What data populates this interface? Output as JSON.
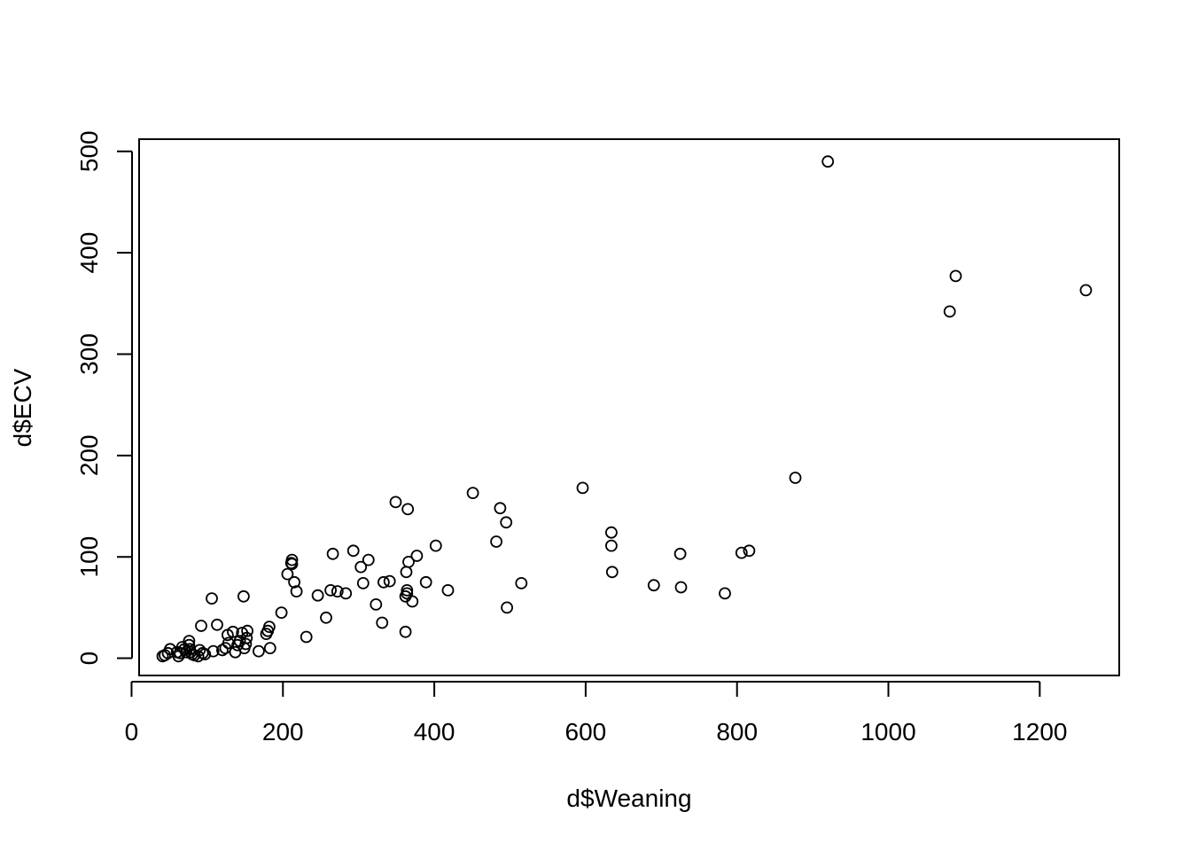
{
  "chart_data": {
    "type": "scatter",
    "title": "",
    "xlabel": "d$Weaning",
    "ylabel": "d$ECV",
    "xlim": [
      10,
      1305
    ],
    "ylim": [
      -17,
      512
    ],
    "xticks": [
      0,
      200,
      400,
      600,
      800,
      1000,
      1200
    ],
    "yticks": [
      0,
      100,
      200,
      300,
      400,
      500
    ],
    "grid": false,
    "marker": "open-circle",
    "points": [
      [
        41,
        2
      ],
      [
        44,
        3
      ],
      [
        48,
        5
      ],
      [
        51,
        9
      ],
      [
        60,
        6
      ],
      [
        62,
        2
      ],
      [
        64,
        5
      ],
      [
        67,
        11
      ],
      [
        70,
        9
      ],
      [
        72,
        6
      ],
      [
        76,
        17
      ],
      [
        76,
        13
      ],
      [
        77,
        9
      ],
      [
        78,
        6
      ],
      [
        80,
        4
      ],
      [
        83,
        3
      ],
      [
        88,
        2
      ],
      [
        90,
        8
      ],
      [
        92,
        32
      ],
      [
        94,
        5
      ],
      [
        97,
        4
      ],
      [
        106,
        59
      ],
      [
        108,
        7
      ],
      [
        113,
        33
      ],
      [
        120,
        8
      ],
      [
        124,
        10
      ],
      [
        127,
        23
      ],
      [
        128,
        15
      ],
      [
        134,
        26
      ],
      [
        137,
        6
      ],
      [
        140,
        13
      ],
      [
        143,
        17
      ],
      [
        146,
        25
      ],
      [
        148,
        61
      ],
      [
        149,
        10
      ],
      [
        151,
        14
      ],
      [
        152,
        20
      ],
      [
        153,
        27
      ],
      [
        168,
        7
      ],
      [
        178,
        24
      ],
      [
        180,
        27
      ],
      [
        182,
        31
      ],
      [
        183,
        10
      ],
      [
        198,
        45
      ],
      [
        206,
        83
      ],
      [
        211,
        94
      ],
      [
        212,
        97
      ],
      [
        212,
        93
      ],
      [
        215,
        75
      ],
      [
        218,
        66
      ],
      [
        231,
        21
      ],
      [
        246,
        62
      ],
      [
        257,
        40
      ],
      [
        263,
        67
      ],
      [
        266,
        103
      ],
      [
        272,
        66
      ],
      [
        283,
        64
      ],
      [
        293,
        106
      ],
      [
        303,
        90
      ],
      [
        306,
        74
      ],
      [
        313,
        97
      ],
      [
        323,
        53
      ],
      [
        331,
        35
      ],
      [
        333,
        75
      ],
      [
        341,
        76
      ],
      [
        349,
        154
      ],
      [
        362,
        26
      ],
      [
        362,
        61
      ],
      [
        363,
        85
      ],
      [
        364,
        67
      ],
      [
        364,
        64
      ],
      [
        365,
        147
      ],
      [
        366,
        95
      ],
      [
        371,
        56
      ],
      [
        377,
        101
      ],
      [
        389,
        75
      ],
      [
        402,
        111
      ],
      [
        418,
        67
      ],
      [
        451,
        163
      ],
      [
        482,
        115
      ],
      [
        487,
        148
      ],
      [
        495,
        134
      ],
      [
        496,
        50
      ],
      [
        515,
        74
      ],
      [
        596,
        168
      ],
      [
        634,
        124
      ],
      [
        634,
        111
      ],
      [
        635,
        85
      ],
      [
        690,
        72
      ],
      [
        725,
        103
      ],
      [
        726,
        70
      ],
      [
        784,
        64
      ],
      [
        806,
        104
      ],
      [
        816,
        106
      ],
      [
        877,
        178
      ],
      [
        920,
        490
      ],
      [
        1081,
        342
      ],
      [
        1089,
        377
      ],
      [
        1261,
        363
      ]
    ]
  }
}
